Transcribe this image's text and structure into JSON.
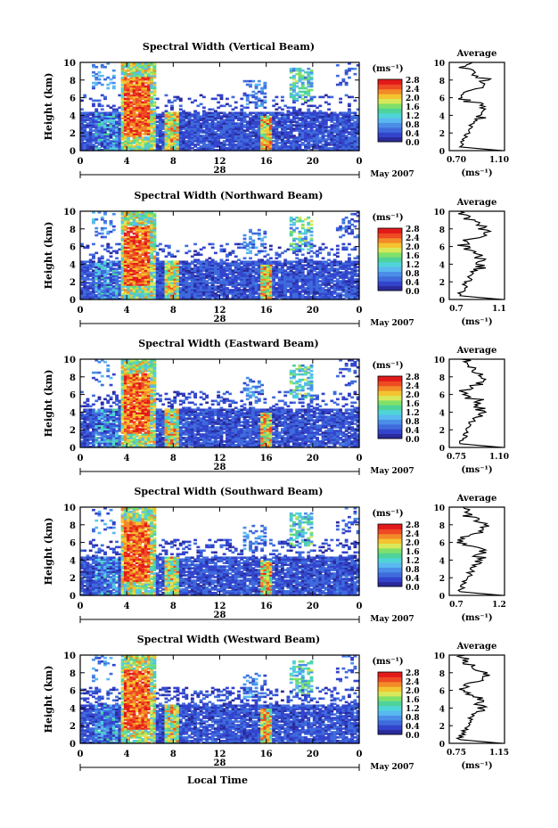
{
  "figure": {
    "month_label": "May 2007",
    "xlabel": "Local Time",
    "cbar_unit": "(ms⁻¹)",
    "avg_title": "Average",
    "avg_unit": "(ms⁻¹)",
    "ylabel": "Height (km)",
    "colormap": [
      "#2a2a9a",
      "#3344cc",
      "#3f6bdc",
      "#4a8ee8",
      "#5ab8f0",
      "#4fd4d8",
      "#4ed39a",
      "#7fe06a",
      "#d8e85a",
      "#f4c430",
      "#f28a28",
      "#ee4a24",
      "#e21a1a"
    ]
  },
  "chart_data": [
    {
      "type": "heatmap",
      "title": "Spectral Width (Vertical Beam)",
      "x_ticks": [
        "0",
        "4",
        "8",
        "12",
        "16",
        "20",
        "0"
      ],
      "xlim": [
        0,
        24
      ],
      "y_ticks": [
        "0",
        "2",
        "4",
        "6",
        "8",
        "10"
      ],
      "ylim": [
        0,
        10
      ],
      "date_label": "28",
      "colorbar": {
        "ticks": [
          "0.0",
          "0.4",
          "0.8",
          "1.2",
          "1.6",
          "2.0",
          "2.4",
          "2.8"
        ],
        "range": [
          0,
          2.8
        ]
      },
      "average": {
        "xticks": [
          "0.70",
          "1.10"
        ],
        "xlim": [
          0.7,
          1.1
        ]
      }
    },
    {
      "type": "heatmap",
      "title": "Spectral Width (Northward Beam)",
      "x_ticks": [
        "0",
        "4",
        "8",
        "12",
        "16",
        "20",
        "0"
      ],
      "xlim": [
        0,
        24
      ],
      "y_ticks": [
        "0",
        "2",
        "4",
        "6",
        "8",
        "10"
      ],
      "ylim": [
        0,
        10
      ],
      "date_label": "28",
      "colorbar": {
        "ticks": [
          "0.0",
          "0.4",
          "0.8",
          "1.2",
          "1.6",
          "2.0",
          "2.4",
          "2.8"
        ],
        "range": [
          0,
          2.8
        ]
      },
      "average": {
        "xticks": [
          "0.7",
          "1.1"
        ],
        "xlim": [
          0.7,
          1.1
        ]
      }
    },
    {
      "type": "heatmap",
      "title": "Spectral Width (Eastward Beam)",
      "x_ticks": [
        "0",
        "4",
        "8",
        "12",
        "16",
        "20",
        "0"
      ],
      "xlim": [
        0,
        24
      ],
      "y_ticks": [
        "0",
        "2",
        "4",
        "6",
        "8",
        "10"
      ],
      "ylim": [
        0,
        10
      ],
      "date_label": "28",
      "colorbar": {
        "ticks": [
          "0.0",
          "0.4",
          "0.8",
          "1.2",
          "1.6",
          "2.0",
          "2.4",
          "2.8"
        ],
        "range": [
          0,
          2.8
        ]
      },
      "average": {
        "xticks": [
          "0.75",
          "1.10"
        ],
        "xlim": [
          0.75,
          1.1
        ]
      }
    },
    {
      "type": "heatmap",
      "title": "Spectral Width (Southward Beam)",
      "x_ticks": [
        "0",
        "4",
        "8",
        "12",
        "16",
        "20",
        "0"
      ],
      "xlim": [
        0,
        24
      ],
      "y_ticks": [
        "0",
        "2",
        "4",
        "6",
        "8",
        "10"
      ],
      "ylim": [
        0,
        10
      ],
      "date_label": "28",
      "colorbar": {
        "ticks": [
          "0.0",
          "0.4",
          "0.8",
          "1.2",
          "1.6",
          "2.0",
          "2.4",
          "2.8"
        ],
        "range": [
          0,
          2.8
        ]
      },
      "average": {
        "xticks": [
          "0.7",
          "1.2"
        ],
        "xlim": [
          0.7,
          1.2
        ]
      }
    },
    {
      "type": "heatmap",
      "title": "Spectral Width (Westward Beam)",
      "x_ticks": [
        "0",
        "4",
        "8",
        "12",
        "16",
        "20",
        "0"
      ],
      "xlim": [
        0,
        24
      ],
      "y_ticks": [
        "0",
        "2",
        "4",
        "6",
        "8",
        "10"
      ],
      "ylim": [
        0,
        10
      ],
      "date_label": "28",
      "colorbar": {
        "ticks": [
          "0.0",
          "0.4",
          "0.8",
          "1.2",
          "1.6",
          "2.0",
          "2.4",
          "2.8"
        ],
        "range": [
          0,
          2.8
        ]
      },
      "average": {
        "xticks": [
          "0.75",
          "1.15"
        ],
        "xlim": [
          0.75,
          1.15
        ]
      }
    }
  ]
}
